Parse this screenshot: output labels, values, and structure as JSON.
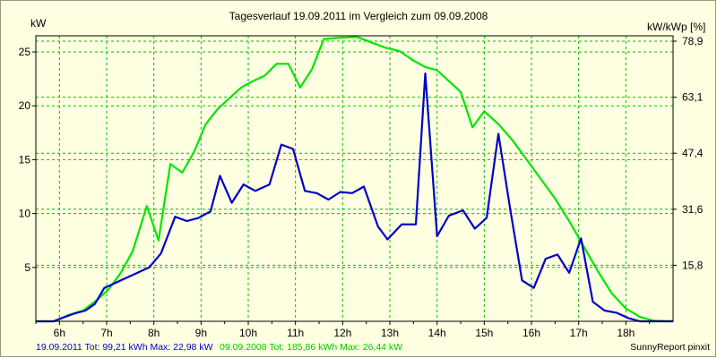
{
  "chart_data": {
    "type": "line",
    "title": "Tagesverlauf 19.09.2011 im Vergleich zum 09.09.2008",
    "ylabel_left": "kW",
    "ylabel_right": "kW/kWp [%]",
    "xlabels": [
      "6h",
      "7h",
      "8h",
      "9h",
      "10h",
      "11h",
      "12h",
      "13h",
      "14h",
      "15h",
      "16h",
      "17h",
      "18h"
    ],
    "xlim": [
      5.5,
      19.0
    ],
    "ylim": [
      0,
      26.5
    ],
    "yticks_left": [
      5,
      10,
      15,
      20,
      25
    ],
    "yticks_right": [
      {
        "value": 5.2,
        "label": "15,8"
      },
      {
        "value": 10.4,
        "label": "31,6"
      },
      {
        "value": 15.6,
        "label": "47,4"
      },
      {
        "value": 20.8,
        "label": "63,1"
      },
      {
        "value": 26.0,
        "label": "78,9"
      }
    ],
    "grid": true,
    "series": [
      {
        "name": "19.09.2011",
        "color": "#0000c8",
        "points": [
          [
            5.5,
            0
          ],
          [
            5.87,
            0
          ],
          [
            6.05,
            0.3
          ],
          [
            6.3,
            0.7
          ],
          [
            6.55,
            1.0
          ],
          [
            6.75,
            1.6
          ],
          [
            6.95,
            3.1
          ],
          [
            7.1,
            3.4
          ],
          [
            7.3,
            3.8
          ],
          [
            7.55,
            4.3
          ],
          [
            7.9,
            5.0
          ],
          [
            8.15,
            6.3
          ],
          [
            8.45,
            9.7
          ],
          [
            8.7,
            9.3
          ],
          [
            8.95,
            9.6
          ],
          [
            9.2,
            10.2
          ],
          [
            9.4,
            13.5
          ],
          [
            9.65,
            11.0
          ],
          [
            9.9,
            12.7
          ],
          [
            10.15,
            12.1
          ],
          [
            10.45,
            12.7
          ],
          [
            10.7,
            16.4
          ],
          [
            10.95,
            16.0
          ],
          [
            11.2,
            12.1
          ],
          [
            11.45,
            11.9
          ],
          [
            11.7,
            11.3
          ],
          [
            11.95,
            12.0
          ],
          [
            12.2,
            11.9
          ],
          [
            12.45,
            12.5
          ],
          [
            12.75,
            8.8
          ],
          [
            12.95,
            7.6
          ],
          [
            13.25,
            9.0
          ],
          [
            13.55,
            9.0
          ],
          [
            13.75,
            23.0
          ],
          [
            14.0,
            7.9
          ],
          [
            14.25,
            9.8
          ],
          [
            14.55,
            10.3
          ],
          [
            14.8,
            8.6
          ],
          [
            15.05,
            9.6
          ],
          [
            15.3,
            17.4
          ],
          [
            15.55,
            10.4
          ],
          [
            15.8,
            3.8
          ],
          [
            16.05,
            3.1
          ],
          [
            16.3,
            5.8
          ],
          [
            16.55,
            6.2
          ],
          [
            16.8,
            4.5
          ],
          [
            17.05,
            7.7
          ],
          [
            17.3,
            1.8
          ],
          [
            17.55,
            1.0
          ],
          [
            17.8,
            0.8
          ],
          [
            18.05,
            0.3
          ],
          [
            18.3,
            0
          ],
          [
            19.0,
            0
          ]
        ]
      },
      {
        "name": "09.09.2008",
        "color": "#00e600",
        "points": [
          [
            5.5,
            0
          ],
          [
            5.9,
            0
          ],
          [
            6.2,
            0.6
          ],
          [
            6.5,
            1.0
          ],
          [
            6.8,
            2.0
          ],
          [
            7.05,
            3.0
          ],
          [
            7.3,
            4.5
          ],
          [
            7.55,
            6.5
          ],
          [
            7.85,
            10.7
          ],
          [
            8.1,
            7.5
          ],
          [
            8.35,
            14.6
          ],
          [
            8.6,
            13.8
          ],
          [
            8.85,
            15.7
          ],
          [
            9.1,
            18.3
          ],
          [
            9.35,
            19.7
          ],
          [
            9.6,
            20.7
          ],
          [
            9.85,
            21.7
          ],
          [
            10.1,
            22.3
          ],
          [
            10.35,
            22.8
          ],
          [
            10.6,
            23.9
          ],
          [
            10.85,
            23.9
          ],
          [
            11.1,
            21.7
          ],
          [
            11.35,
            23.4
          ],
          [
            11.6,
            26.2
          ],
          [
            11.9,
            26.3
          ],
          [
            12.3,
            26.4
          ],
          [
            12.6,
            25.9
          ],
          [
            12.9,
            25.4
          ],
          [
            13.2,
            25.1
          ],
          [
            13.5,
            24.2
          ],
          [
            13.75,
            23.6
          ],
          [
            14.0,
            23.3
          ],
          [
            14.25,
            22.3
          ],
          [
            14.5,
            21.3
          ],
          [
            14.75,
            18.0
          ],
          [
            15.0,
            19.5
          ],
          [
            15.3,
            18.3
          ],
          [
            15.6,
            16.8
          ],
          [
            15.9,
            15.0
          ],
          [
            16.2,
            13.2
          ],
          [
            16.5,
            11.4
          ],
          [
            16.8,
            9.3
          ],
          [
            17.1,
            7.0
          ],
          [
            17.4,
            4.7
          ],
          [
            17.7,
            2.6
          ],
          [
            18.0,
            1.2
          ],
          [
            18.3,
            0.4
          ],
          [
            18.6,
            0.05
          ],
          [
            19.0,
            0
          ]
        ]
      }
    ],
    "footer_left": "19.09.2011 Tot: 99,21 kWh Max: 22,98 kW",
    "footer_mid": "09.09.2008 Tot: 185,86 kWh Max: 26,44 kW",
    "footer_right": "SunnyReport pinxit"
  }
}
